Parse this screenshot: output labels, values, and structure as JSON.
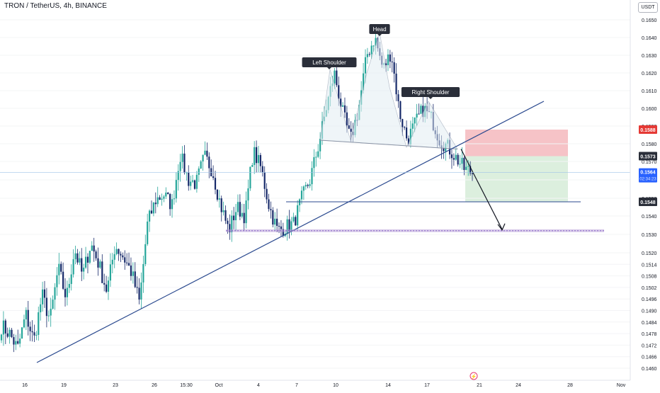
{
  "title": "TRON / TetherUS, 4h, BINANCE",
  "currency": "USDT",
  "colors": {
    "up": "#26a69a",
    "down": "#172a6a",
    "trend_line": "#2b4a8f",
    "support_band": "#b49ad6",
    "stop_zone": "#f4b9bd",
    "target_zone": "#d6ecd8",
    "current_price_bg": "#2962ff",
    "label_bg": "#2a2e39",
    "stop_price_bg": "#e53935"
  },
  "chart_data": {
    "type": "candlestick",
    "ylim": [
      0.146,
      0.165
    ],
    "price_scale_labels": [
      "0.1650",
      "0.1640",
      "0.1630",
      "0.1620",
      "0.1610",
      "0.1600",
      "0.1590",
      "0.1580",
      "0.1570",
      "0.1560",
      "0.1550",
      "0.1540",
      "0.1530",
      "0.1520",
      "0.1514",
      "0.1508",
      "0.1502",
      "0.1496",
      "0.1490",
      "0.1484",
      "0.1478",
      "0.1472",
      "0.1466",
      "0.1460"
    ],
    "x_tick_labels": [
      "16",
      "19",
      "23",
      "26",
      "15:30",
      "Oct",
      "4",
      "7",
      "10",
      "14",
      "17",
      "21",
      "24",
      "28",
      "Nov"
    ],
    "pattern_labels": [
      "Left Shoulder",
      "Head",
      "Right Shoulder"
    ],
    "price_markers": {
      "stop": "0.1588",
      "entry": "0.1573",
      "current": "0.1564",
      "countdown": "02:34:23",
      "target": "0.1548"
    },
    "key_levels": {
      "support_band_price": 0.1532,
      "target_price": 0.1548,
      "neckline_start_price": 0.1582,
      "neckline_end_price": 0.1577
    },
    "ohlc_waypoints": [
      0.1482,
      0.1478,
      0.147,
      0.1488,
      0.1474,
      0.1498,
      0.1485,
      0.1512,
      0.1496,
      0.1522,
      0.1508,
      0.1525,
      0.1514,
      0.15,
      0.1524,
      0.1518,
      0.151,
      0.1494,
      0.1536,
      0.1549,
      0.1552,
      0.1546,
      0.1574,
      0.156,
      0.1558,
      0.1573,
      0.1565,
      0.1546,
      0.1532,
      0.1545,
      0.154,
      0.1576,
      0.1566,
      0.1545,
      0.1532,
      0.1534,
      0.1536,
      0.155,
      0.156,
      0.1578,
      0.16,
      0.162,
      0.1598,
      0.1582,
      0.16,
      0.163,
      0.164,
      0.1622,
      0.1632,
      0.1598,
      0.1582,
      0.1592,
      0.16,
      0.1594,
      0.1582,
      0.1578,
      0.1572,
      0.1566,
      0.1564
    ]
  }
}
